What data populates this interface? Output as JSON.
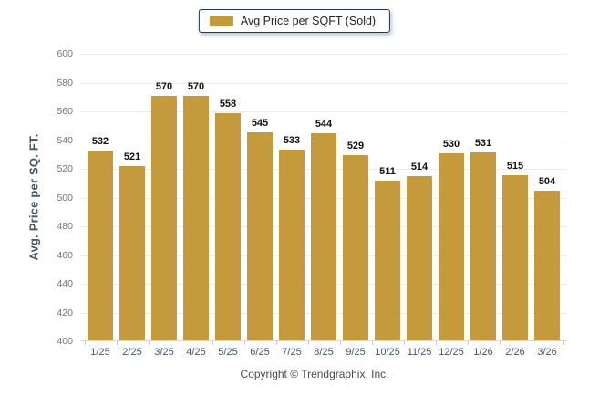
{
  "legend": {
    "label": "Avg Price per SQFT (Sold)"
  },
  "chart_data": {
    "type": "bar",
    "title": "",
    "xlabel": "",
    "ylabel": "Avg. Price per SQ. FT.",
    "categories": [
      "1/25",
      "2/25",
      "3/25",
      "4/25",
      "5/25",
      "6/25",
      "7/25",
      "8/25",
      "9/25",
      "10/25",
      "11/25",
      "12/25",
      "1/26",
      "2/26",
      "3/26"
    ],
    "series": [
      {
        "name": "Avg Price per SQFT (Sold)",
        "values": [
          532,
          521,
          570,
          570,
          558,
          545,
          533,
          544,
          529,
          511,
          514,
          530,
          531,
          515,
          504
        ]
      }
    ],
    "ylim": [
      400,
      600
    ],
    "ytick_step": 20,
    "grid": "horizontal",
    "bar_color": "#C49A3D",
    "legend_position": "top-center",
    "data_labels": true
  },
  "footer": {
    "copyright": "Copyright © Trendgraphix, Inc."
  }
}
